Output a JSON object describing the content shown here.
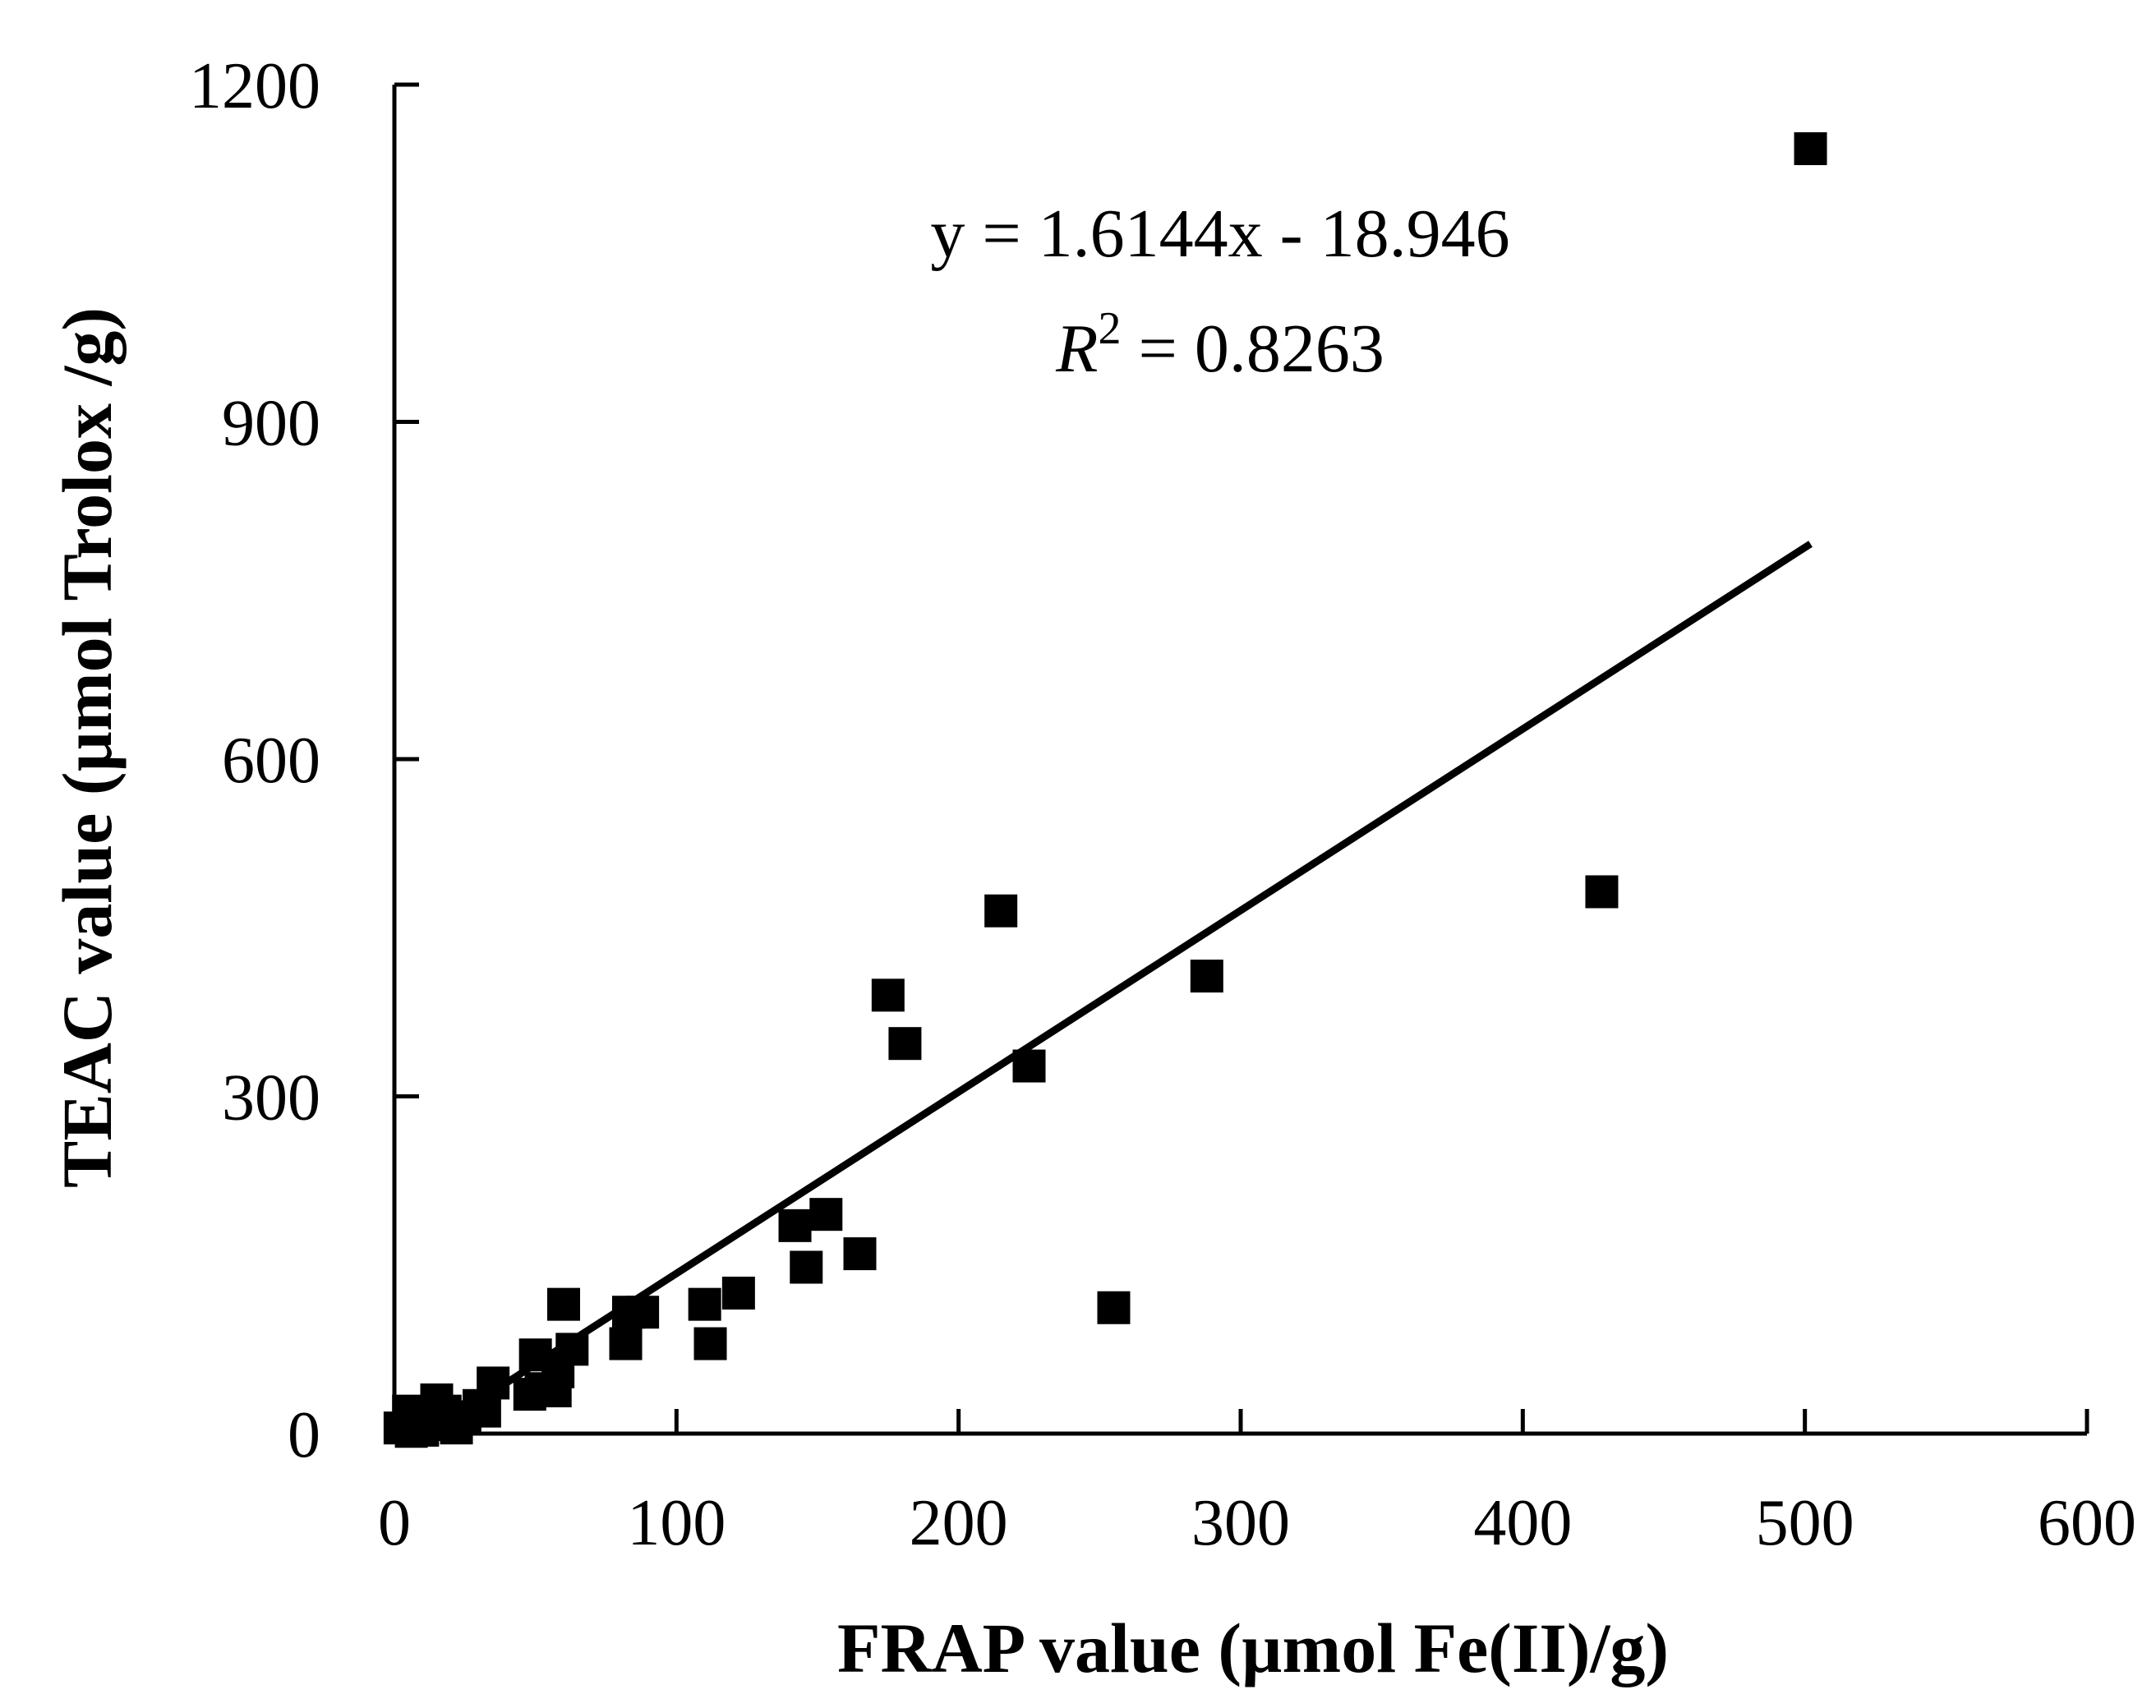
{
  "chart_data": {
    "type": "scatter",
    "xlabel": "FRAP value (µmol Fe(II)/g)",
    "ylabel": "TEAC value (µmol Trolox /g)",
    "xlim": [
      0,
      600
    ],
    "ylim": [
      0,
      1200
    ],
    "xticks": [
      "0",
      "100",
      "200",
      "300",
      "400",
      "500",
      "600"
    ],
    "yticks": [
      "0",
      "300",
      "600",
      "900",
      "1200"
    ],
    "grid": false,
    "legend": "none",
    "marker": "square",
    "color": "#000000",
    "points": [
      [
        2,
        5
      ],
      [
        5,
        20
      ],
      [
        6,
        2
      ],
      [
        8,
        10
      ],
      [
        10,
        3
      ],
      [
        12,
        8
      ],
      [
        15,
        30
      ],
      [
        18,
        20
      ],
      [
        20,
        10
      ],
      [
        22,
        5
      ],
      [
        25,
        15
      ],
      [
        30,
        25
      ],
      [
        32,
        20
      ],
      [
        35,
        45
      ],
      [
        48,
        35
      ],
      [
        52,
        40
      ],
      [
        50,
        70
      ],
      [
        57,
        38
      ],
      [
        58,
        55
      ],
      [
        60,
        115
      ],
      [
        63,
        75
      ],
      [
        82,
        80
      ],
      [
        83,
        108
      ],
      [
        88,
        108
      ],
      [
        110,
        115
      ],
      [
        112,
        80
      ],
      [
        122,
        125
      ],
      [
        142,
        185
      ],
      [
        146,
        148
      ],
      [
        153,
        195
      ],
      [
        165,
        160
      ],
      [
        175,
        390
      ],
      [
        181,
        347
      ],
      [
        215,
        465
      ],
      [
        225,
        327
      ],
      [
        255,
        112
      ],
      [
        288,
        407
      ],
      [
        428,
        482
      ],
      [
        502,
        1143
      ]
    ],
    "trendline": {
      "slope": 1.6144,
      "intercept": -18.946,
      "x_range": [
        12,
        502
      ],
      "equation": "y = 1.6144x - 18.946",
      "r2_label_R": "R",
      "r2_label_exp": "2",
      "r2_label_rest": " = 0.8263"
    }
  }
}
